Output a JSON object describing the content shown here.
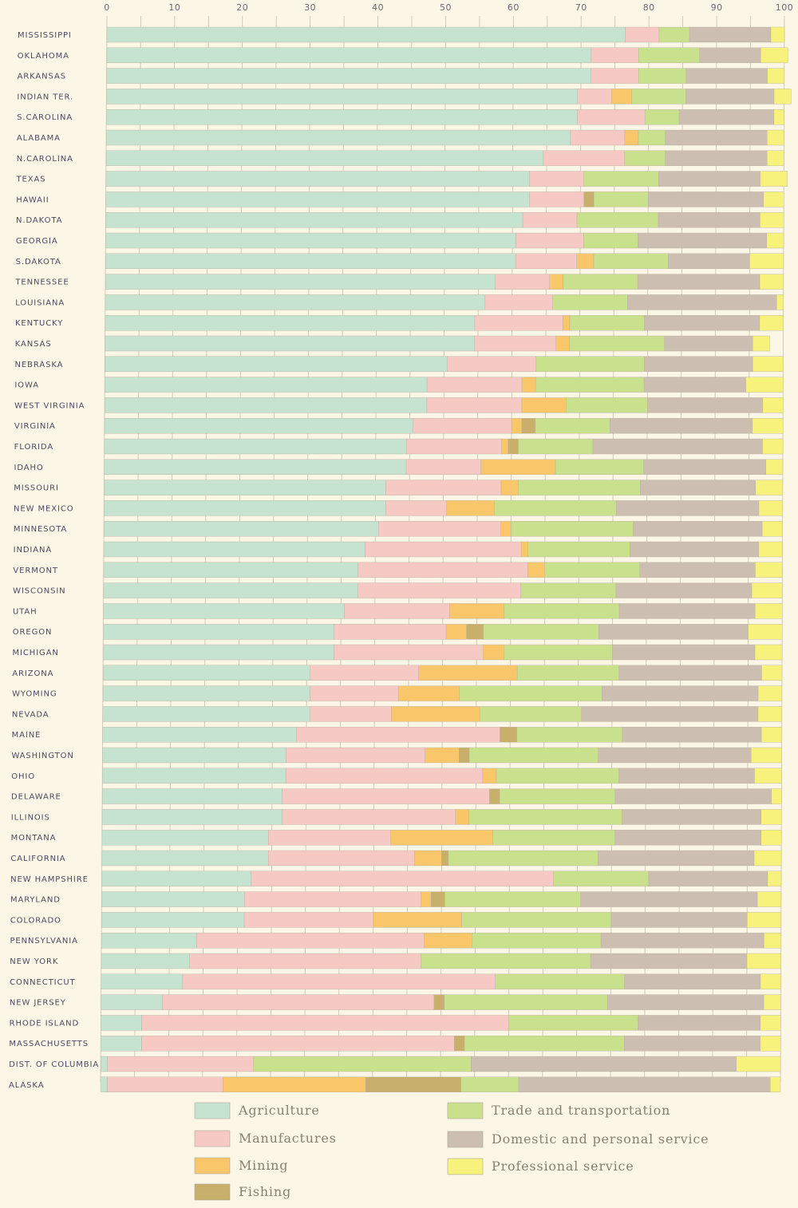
{
  "chart_data": {
    "type": "bar",
    "orientation": "horizontal",
    "stacked": true,
    "title": "",
    "xlabel": "",
    "ylabel": "",
    "xlim": [
      0,
      100
    ],
    "ticks": [
      "0",
      "10",
      "20",
      "30",
      "40",
      "50",
      "60",
      "70",
      "80",
      "90",
      "100"
    ],
    "grid": true,
    "legend_position": "bottom",
    "colors": [
      "#c6e3cf",
      "#f6c9c4",
      "#f9c66a",
      "#c8b06c",
      "#c9e08c",
      "#ccbeb0",
      "#f6f27c"
    ],
    "categories": [
      "MISSISSIPPI",
      "OKLAHOMA",
      "ARKANSAS",
      "INDIAN TER.",
      "S.CAROLINA",
      "ALABAMA",
      "N.CAROLINA",
      "TEXAS",
      "HAWAII",
      "N.DAKOTA",
      "GEORGIA",
      "S.DAKOTA",
      "TENNESSEE",
      "LOUISIANA",
      "KENTUCKY",
      "KANSAS",
      "NEBRASKA",
      "IOWA",
      "WEST VIRGINIA",
      "VIRGINIA",
      "FLORIDA",
      "IDAHO",
      "MISSOURI",
      "NEW MEXICO",
      "MINNESOTA",
      "INDIANA",
      "VERMONT",
      "WISCONSIN",
      "UTAH",
      "OREGON",
      "MICHIGAN",
      "ARIZONA",
      "WYOMING",
      "NEVADA",
      "MAINE",
      "WASHINGTON",
      "OHIO",
      "DELAWARE",
      "ILLINOIS",
      "MONTANA",
      "CALIFORNIA",
      "NEW HAMPSHIRE",
      "MARYLAND",
      "COLORADO",
      "PENNSYLVANIA",
      "NEW YORK",
      "CONNECTICUT",
      "NEW JERSEY",
      "RHODE ISLAND",
      "MASSACHUSETTS",
      "DIST. OF COLUMBIA",
      "ALASKA"
    ],
    "series": [
      {
        "name": "Agriculture",
        "values": [
          76.5,
          71.5,
          71.5,
          69.5,
          69.5,
          68.5,
          64.5,
          62.5,
          62.5,
          61.5,
          60.5,
          60.5,
          57.5,
          56.0,
          54.5,
          54.5,
          50.5,
          47.5,
          47.5,
          45.5,
          44.5,
          44.5,
          41.5,
          41.5,
          40.5,
          38.5,
          37.5,
          37.5,
          35.5,
          34.0,
          34.0,
          30.5,
          30.5,
          30.5,
          28.5,
          27.0,
          27.0,
          26.5,
          26.5,
          24.5,
          24.5,
          22.0,
          21.0,
          21.0,
          14.0,
          13.0,
          12.0,
          9.0,
          6.0,
          6.0,
          1.0,
          1.0
        ]
      },
      {
        "name": "Manufactures",
        "values": [
          5.0,
          7.0,
          7.0,
          5.0,
          10.0,
          8.0,
          12.0,
          8.0,
          8.0,
          8.0,
          10.0,
          9.0,
          8.0,
          10.0,
          13.0,
          12.0,
          13.0,
          14.0,
          14.0,
          14.5,
          14.0,
          11.0,
          17.0,
          9.0,
          18.0,
          23.0,
          25.0,
          24.0,
          15.5,
          16.5,
          22.0,
          16.0,
          13.0,
          12.0,
          30.0,
          20.5,
          29.0,
          30.5,
          25.5,
          18.0,
          21.5,
          44.5,
          26.0,
          19.0,
          33.5,
          34.0,
          46.0,
          40.0,
          54.0,
          46.0,
          21.5,
          17.0
        ]
      },
      {
        "name": "Mining",
        "values": [
          0.0,
          0.0,
          0.0,
          3.0,
          0.0,
          2.0,
          0.0,
          0.0,
          0.0,
          0.0,
          0.0,
          2.5,
          2.0,
          0.0,
          1.0,
          2.0,
          0.0,
          2.0,
          6.5,
          1.5,
          1.0,
          11.0,
          2.5,
          7.0,
          1.5,
          1.0,
          2.5,
          0.0,
          8.0,
          3.0,
          3.0,
          14.5,
          9.0,
          13.0,
          0.0,
          5.0,
          2.0,
          0.0,
          2.0,
          15.0,
          4.0,
          0.0,
          1.5,
          13.0,
          7.0,
          0.0,
          0.0,
          0.0,
          0.0,
          0.0,
          0.0,
          21.0
        ]
      },
      {
        "name": "Fishing",
        "values": [
          0.0,
          0.0,
          0.0,
          0.0,
          0.0,
          0.0,
          0.0,
          0.0,
          1.5,
          0.0,
          0.0,
          0.0,
          0.0,
          0.0,
          0.0,
          0.0,
          0.0,
          0.0,
          0.0,
          2.0,
          1.5,
          0.0,
          0.0,
          0.0,
          0.0,
          0.0,
          0.0,
          0.0,
          0.0,
          2.5,
          0.0,
          0.0,
          0.0,
          0.0,
          2.5,
          1.5,
          0.0,
          1.5,
          0.0,
          0.0,
          1.0,
          0.0,
          2.0,
          0.0,
          0.0,
          0.0,
          0.0,
          1.5,
          0.0,
          1.5,
          0.0,
          14.0
        ]
      },
      {
        "name": "Trade and transportation",
        "values": [
          4.5,
          9.0,
          7.0,
          8.0,
          5.0,
          4.0,
          6.0,
          11.0,
          8.0,
          12.0,
          8.0,
          11.0,
          11.0,
          11.0,
          11.0,
          14.0,
          16.0,
          16.0,
          12.0,
          11.0,
          11.0,
          13.0,
          18.0,
          18.0,
          18.0,
          15.0,
          14.0,
          14.0,
          17.0,
          17.0,
          16.0,
          15.0,
          21.0,
          15.0,
          15.5,
          19.0,
          18.0,
          17.0,
          22.5,
          18.0,
          22.0,
          14.0,
          20.0,
          22.0,
          19.0,
          25.0,
          19.0,
          24.0,
          19.0,
          23.5,
          32.0,
          8.5
        ]
      },
      {
        "name": "Domestic and personal service",
        "values": [
          12.0,
          9.0,
          12.0,
          13.0,
          14.0,
          15.0,
          15.0,
          15.0,
          17.0,
          15.0,
          19.0,
          12.0,
          18.0,
          22.0,
          17.0,
          13.0,
          16.0,
          15.0,
          17.0,
          21.0,
          25.0,
          18.0,
          17.0,
          21.0,
          19.0,
          19.0,
          17.0,
          20.0,
          20.0,
          22.0,
          21.0,
          21.0,
          23.0,
          26.0,
          20.5,
          22.5,
          20.0,
          23.0,
          20.5,
          21.5,
          23.0,
          17.5,
          26.0,
          20.0,
          24.0,
          23.0,
          20.0,
          23.0,
          18.0,
          20.0,
          39.0,
          37.0
        ]
      },
      {
        "name": "Professional service",
        "values": [
          2.0,
          4.0,
          2.5,
          2.5,
          1.5,
          2.5,
          2.5,
          4.0,
          3.0,
          3.5,
          2.5,
          5.0,
          3.5,
          1.0,
          3.5,
          2.5,
          4.5,
          5.5,
          3.0,
          4.5,
          3.0,
          2.5,
          4.0,
          3.5,
          3.0,
          3.5,
          4.0,
          4.5,
          4.0,
          5.0,
          4.0,
          3.0,
          3.5,
          3.5,
          3.0,
          4.5,
          4.0,
          1.5,
          3.0,
          3.0,
          4.0,
          2.0,
          3.5,
          5.0,
          2.5,
          5.0,
          3.0,
          2.5,
          3.0,
          3.0,
          6.5,
          1.5
        ]
      }
    ]
  }
}
